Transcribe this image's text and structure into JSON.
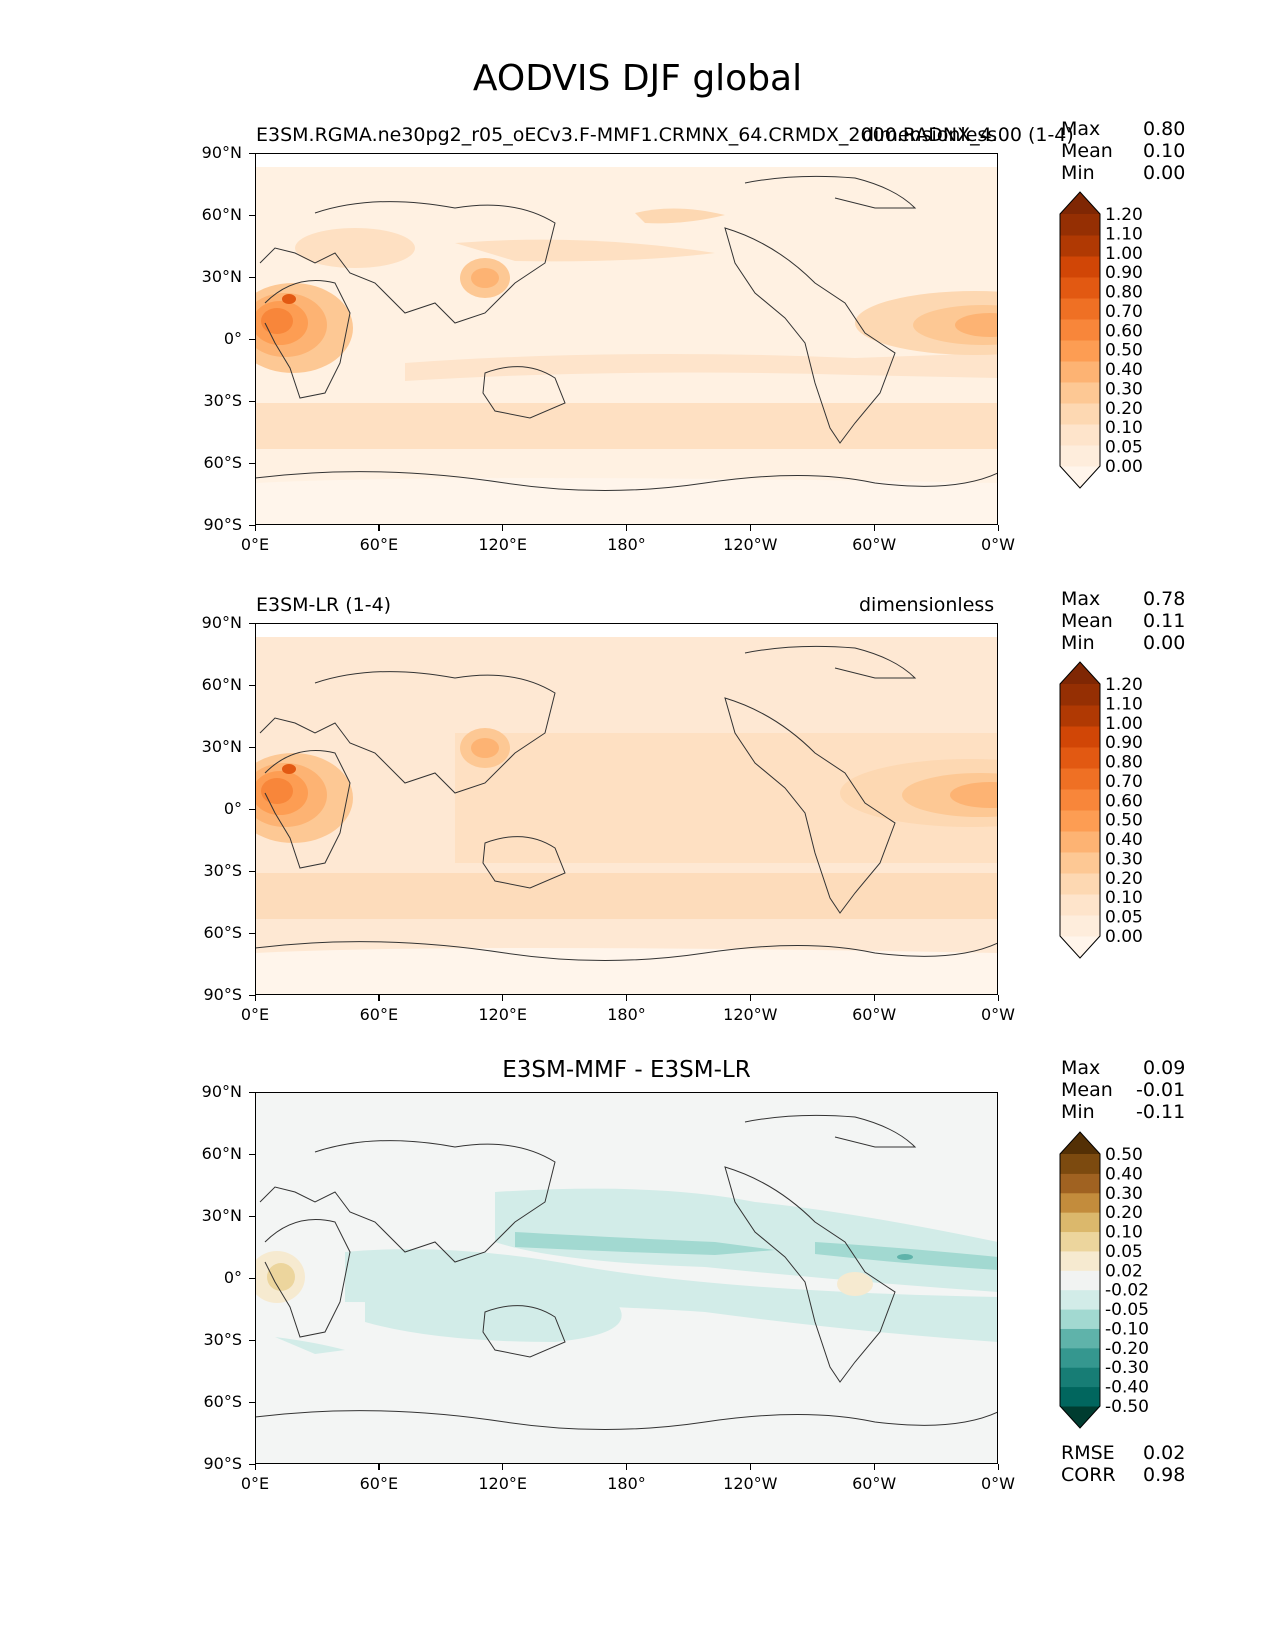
{
  "title": "AODVIS DJF global",
  "lon_labels": [
    "0°E",
    "60°E",
    "120°E",
    "180°",
    "120°W",
    "60°W",
    "0°W"
  ],
  "lat_labels": [
    "90°N",
    "60°N",
    "30°N",
    "0°",
    "30°S",
    "60°S",
    "90°S"
  ],
  "panels": [
    {
      "title_left": "E3SM.RGMA.ne30pg2_r05_oECv3.F-MMF1.CRMNX_64.CRMDX_2000.RADNX_4.00 (1-4)",
      "title_right": "dimensionless",
      "stats": {
        "max_label": "Max",
        "max": "0.80",
        "mean_label": "Mean",
        "mean": "0.10",
        "min_label": "Min",
        "min": "0.00"
      },
      "colorbar": {
        "levels": [
          "0.00",
          "0.05",
          "0.10",
          "0.20",
          "0.30",
          "0.40",
          "0.50",
          "0.60",
          "0.70",
          "0.80",
          "0.90",
          "1.00",
          "1.10",
          "1.20"
        ],
        "colors": [
          "#fff5eb",
          "#feeddc",
          "#fee4cb",
          "#fdd8b2",
          "#fdc894",
          "#fdb373",
          "#fd9d53",
          "#f8863a",
          "#ef7024",
          "#e25912",
          "#d14606",
          "#b03903",
          "#952f03",
          "#7f2704"
        ]
      }
    },
    {
      "title_left": "E3SM-LR (1-4)",
      "title_right": "dimensionless",
      "stats": {
        "max_label": "Max",
        "max": "0.78",
        "mean_label": "Mean",
        "mean": "0.11",
        "min_label": "Min",
        "min": "0.00"
      },
      "colorbar": {
        "levels": [
          "0.00",
          "0.05",
          "0.10",
          "0.20",
          "0.30",
          "0.40",
          "0.50",
          "0.60",
          "0.70",
          "0.80",
          "0.90",
          "1.00",
          "1.10",
          "1.20"
        ],
        "colors": [
          "#fff5eb",
          "#feeddc",
          "#fee4cb",
          "#fdd8b2",
          "#fdc894",
          "#fdb373",
          "#fd9d53",
          "#f8863a",
          "#ef7024",
          "#e25912",
          "#d14606",
          "#b03903",
          "#952f03",
          "#7f2704"
        ]
      }
    },
    {
      "title_center": "E3SM-MMF - E3SM-LR",
      "stats": {
        "max_label": "Max",
        "max": "0.09",
        "mean_label": "Mean",
        "mean": "-0.01",
        "min_label": "Min",
        "min": "-0.11"
      },
      "colorbar": {
        "levels": [
          "-0.50",
          "-0.40",
          "-0.30",
          "-0.20",
          "-0.10",
          "-0.05",
          "-0.02",
          "0.02",
          "0.05",
          "0.10",
          "0.20",
          "0.30",
          "0.40",
          "0.50"
        ],
        "colors": [
          "#003c30",
          "#01665e",
          "#177d75",
          "#35978f",
          "#5fb3aa",
          "#a2d9d1",
          "#d2ece8",
          "#f1f3f2",
          "#f6ead0",
          "#ecd59d",
          "#dbb86c",
          "#c38c3c",
          "#a06221",
          "#7c4a0f",
          "#543005"
        ]
      },
      "metrics": {
        "rmse_label": "RMSE",
        "rmse": "0.02",
        "corr_label": "CORR",
        "corr": "0.98"
      }
    }
  ],
  "colors": {
    "base_orange": "#fff1e2",
    "base_diff": "#f3f5f4",
    "coast": "#333333"
  }
}
